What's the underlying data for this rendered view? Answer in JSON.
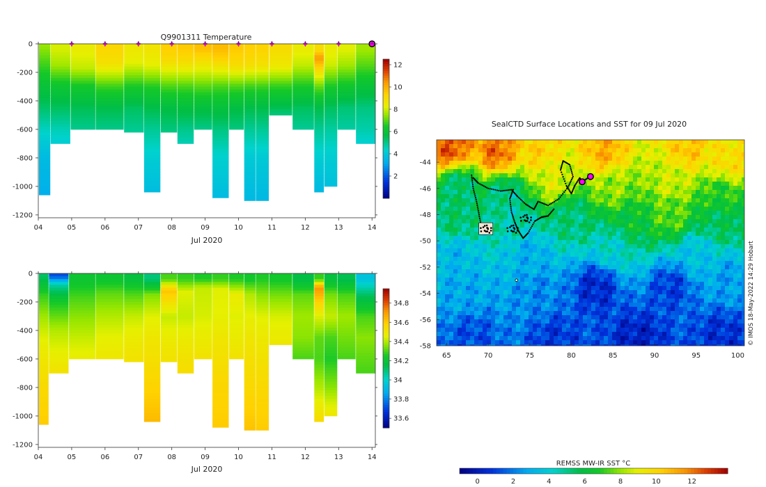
{
  "float_id": "Q9901311",
  "chart_data": [
    {
      "type": "heatmap",
      "title": "Q9901311  Temperature",
      "xlabel": "Jul 2020",
      "ylabel": "",
      "x_tick_labels": [
        "04",
        "05",
        "06",
        "07",
        "08",
        "09",
        "10",
        "11",
        "12",
        "13",
        "14"
      ],
      "xlim": [
        4,
        14.1
      ],
      "y_ticks": [
        0,
        -200,
        -400,
        -600,
        -800,
        -1000,
        -1200
      ],
      "ylim": [
        -1220,
        0
      ],
      "colorbar": {
        "range": [
          0,
          12.5
        ],
        "ticks": [
          2,
          4,
          6,
          8,
          10,
          12
        ]
      },
      "surface_markers_day": [
        5,
        6,
        7,
        8,
        9,
        10,
        11,
        12,
        13
      ],
      "current_marker_day": 14,
      "profiles": [
        {
          "day": 4.1,
          "z": [
            -20,
            -150,
            -300,
            -450,
            -600,
            -780,
            -1060
          ],
          "v": [
            7.5,
            6.8,
            6.0,
            5.3,
            4.5,
            3.7,
            3.3
          ]
        },
        {
          "day": 4.6,
          "z": [
            -40,
            -150,
            -300,
            -450,
            -600,
            -700
          ],
          "v": [
            8.1,
            7.6,
            6.2,
            5.4,
            4.6,
            4.2
          ]
        },
        {
          "day": 5.3,
          "z": [
            -40,
            -170,
            -300,
            -450,
            -590
          ],
          "v": [
            8.4,
            7.9,
            6.4,
            5.5,
            5.0
          ]
        },
        {
          "day": 6.1,
          "z": [
            -40,
            -140,
            -300,
            -450,
            -600
          ],
          "v": [
            9.2,
            8.8,
            6.8,
            5.6,
            5.0
          ]
        },
        {
          "day": 7.0,
          "z": [
            -40,
            -140,
            -300,
            -450,
            -610
          ],
          "v": [
            8.6,
            8.2,
            6.5,
            5.4,
            4.9
          ]
        },
        {
          "day": 7.3,
          "z": [
            -40,
            -150,
            -300,
            -450,
            -600,
            -800,
            -1040
          ],
          "v": [
            8.7,
            8.3,
            6.6,
            5.6,
            4.9,
            4.2,
            3.7
          ]
        },
        {
          "day": 8.0,
          "z": [
            -40,
            -120,
            -300,
            -450,
            -610
          ],
          "v": [
            9.4,
            9.0,
            6.9,
            5.7,
            5.1
          ]
        },
        {
          "day": 8.3,
          "z": [
            -40,
            -130,
            -300,
            -450,
            -600,
            -700
          ],
          "v": [
            9.5,
            8.9,
            6.9,
            5.8,
            5.0,
            4.6
          ]
        },
        {
          "day": 9.0,
          "z": [
            -40,
            -100,
            -300,
            -450,
            -600
          ],
          "v": [
            9.7,
            9.1,
            7.0,
            5.8,
            5.0
          ]
        },
        {
          "day": 9.4,
          "z": [
            -40,
            -110,
            -300,
            -450,
            -600,
            -800,
            -1070
          ],
          "v": [
            9.8,
            9.3,
            6.9,
            5.9,
            5.1,
            4.3,
            3.7
          ]
        },
        {
          "day": 10.0,
          "z": [
            -40,
            -150,
            -300,
            -450,
            -600
          ],
          "v": [
            9.5,
            9.0,
            6.9,
            5.7,
            5.1
          ]
        },
        {
          "day": 10.3,
          "z": [
            -40,
            -150,
            -300,
            -450,
            -600,
            -800,
            -1100
          ],
          "v": [
            9.4,
            8.9,
            6.8,
            5.6,
            4.9,
            4.1,
            3.6
          ]
        },
        {
          "day": 10.7,
          "z": [
            -40,
            -150,
            -300,
            -450,
            -600,
            -800,
            -1090
          ],
          "v": [
            9.3,
            8.8,
            6.8,
            5.6,
            4.9,
            4.1,
            3.6
          ]
        },
        {
          "day": 11.1,
          "z": [
            -40,
            -150,
            -300,
            -450,
            -500
          ],
          "v": [
            9.0,
            8.6,
            6.7,
            5.5,
            5.1
          ]
        },
        {
          "day": 12.1,
          "z": [
            -40,
            -150,
            -300,
            -450,
            -600
          ],
          "v": [
            8.4,
            7.9,
            6.5,
            5.4,
            4.9
          ]
        },
        {
          "day": 12.4,
          "z": [
            -40,
            -100,
            -300,
            -450,
            -600,
            -800,
            -1040
          ],
          "v": [
            9.0,
            10.4,
            7.1,
            5.6,
            4.9,
            4.2,
            3.6
          ]
        },
        {
          "day": 12.7,
          "z": [
            -40,
            -150,
            -300,
            -450,
            -600,
            -800,
            -1000
          ],
          "v": [
            8.4,
            8.0,
            6.5,
            5.4,
            4.8,
            4.2,
            3.8
          ]
        },
        {
          "day": 13.2,
          "z": [
            -40,
            -150,
            -300,
            -450,
            -590
          ],
          "v": [
            8.2,
            7.6,
            6.3,
            5.2,
            4.8
          ]
        },
        {
          "day": 13.8,
          "z": [
            -40,
            -150,
            -300,
            -450,
            -600,
            -700
          ],
          "v": [
            7.6,
            7.0,
            6.0,
            5.1,
            4.7,
            4.3
          ]
        }
      ]
    },
    {
      "type": "heatmap",
      "title": "",
      "xlabel": "Jul 2020",
      "ylabel": "",
      "x_tick_labels": [
        "04",
        "05",
        "06",
        "07",
        "08",
        "09",
        "10",
        "11",
        "12",
        "13",
        "14"
      ],
      "xlim": [
        4,
        14.1
      ],
      "y_ticks": [
        0,
        -200,
        -400,
        -600,
        -800,
        -1000,
        -1200
      ],
      "ylim": [
        -1220,
        0
      ],
      "colorbar": {
        "range": [
          33.5,
          34.95
        ],
        "ticks": [
          33.6,
          33.8,
          34,
          34.2,
          34.4,
          34.6,
          34.8
        ],
        "tick_labels": [
          "33.6",
          "33.8",
          "34",
          "34.2",
          "34.4",
          "34.6",
          "34.8"
        ]
      },
      "profiles": [
        {
          "day": 4.1,
          "z": [
            -20,
            -150,
            -300,
            -450,
            -600,
            -780,
            -1060
          ],
          "v": [
            34.12,
            34.28,
            34.38,
            34.45,
            34.5,
            34.55,
            34.6
          ]
        },
        {
          "day": 4.5,
          "z": [
            -20,
            -80,
            -200,
            -400,
            -600,
            -700
          ],
          "v": [
            33.72,
            34.05,
            34.25,
            34.4,
            34.48,
            34.52
          ]
        },
        {
          "day": 5.3,
          "z": [
            -40,
            -170,
            -300,
            -450,
            -590
          ],
          "v": [
            34.22,
            34.3,
            34.36,
            34.42,
            34.47
          ]
        },
        {
          "day": 6.1,
          "z": [
            -40,
            -140,
            -300,
            -450,
            -600
          ],
          "v": [
            34.22,
            34.32,
            34.4,
            34.46,
            34.5
          ]
        },
        {
          "day": 7.0,
          "z": [
            -40,
            -140,
            -300,
            -450,
            -610
          ],
          "v": [
            34.18,
            34.3,
            34.42,
            34.48,
            34.52
          ]
        },
        {
          "day": 7.3,
          "z": [
            -40,
            -150,
            -300,
            -450,
            -600,
            -800,
            -1040
          ],
          "v": [
            34.1,
            34.35,
            34.45,
            34.5,
            34.53,
            34.58,
            34.64
          ]
        },
        {
          "day": 8.0,
          "z": [
            -40,
            -120,
            -300,
            -450,
            -610
          ],
          "v": [
            34.3,
            34.62,
            34.42,
            34.48,
            34.52
          ]
        },
        {
          "day": 8.3,
          "z": [
            -40,
            -130,
            -300,
            -450,
            -600,
            -700
          ],
          "v": [
            34.28,
            34.45,
            34.42,
            34.48,
            34.52,
            34.54
          ]
        },
        {
          "day": 9.0,
          "z": [
            -40,
            -100,
            -300,
            -450,
            -600
          ],
          "v": [
            34.26,
            34.42,
            34.44,
            34.48,
            34.52
          ]
        },
        {
          "day": 9.4,
          "z": [
            -40,
            -110,
            -300,
            -450,
            -600,
            -800,
            -1070
          ],
          "v": [
            34.28,
            34.45,
            34.46,
            34.5,
            34.53,
            34.57,
            34.6
          ]
        },
        {
          "day": 10.0,
          "z": [
            -40,
            -150,
            -300,
            -450,
            -600
          ],
          "v": [
            34.26,
            34.48,
            34.45,
            34.48,
            34.52
          ]
        },
        {
          "day": 10.3,
          "z": [
            -40,
            -150,
            -300,
            -450,
            -600,
            -800,
            -1100
          ],
          "v": [
            34.24,
            34.4,
            34.46,
            34.5,
            34.53,
            34.56,
            34.62
          ]
        },
        {
          "day": 10.7,
          "z": [
            -40,
            -150,
            -300,
            -450,
            -600,
            -800,
            -1090
          ],
          "v": [
            34.26,
            34.36,
            34.45,
            34.49,
            34.52,
            34.56,
            34.6
          ]
        },
        {
          "day": 11.1,
          "z": [
            -40,
            -150,
            -300,
            -450,
            -500
          ],
          "v": [
            34.24,
            34.34,
            34.44,
            34.48,
            34.5
          ]
        },
        {
          "day": 12.1,
          "z": [
            -40,
            -150,
            -300,
            -450,
            -600
          ],
          "v": [
            34.16,
            34.32,
            34.38,
            34.36,
            34.3
          ]
        },
        {
          "day": 12.4,
          "z": [
            -40,
            -100,
            -300,
            -450,
            -600,
            -800,
            -1040
          ],
          "v": [
            34.28,
            34.72,
            34.45,
            34.32,
            34.3,
            34.4,
            34.55
          ]
        },
        {
          "day": 12.7,
          "z": [
            -40,
            -150,
            -300,
            -450,
            -600,
            -800,
            -1000
          ],
          "v": [
            34.18,
            34.34,
            34.42,
            34.3,
            34.26,
            34.36,
            34.5
          ]
        },
        {
          "day": 13.2,
          "z": [
            -40,
            -150,
            -300,
            -450,
            -590
          ],
          "v": [
            34.14,
            34.3,
            34.38,
            34.34,
            34.3
          ]
        },
        {
          "day": 13.8,
          "z": [
            -40,
            -150,
            -300,
            -450,
            -600,
            -700
          ],
          "v": [
            33.95,
            34.12,
            34.3,
            34.36,
            34.32,
            34.3
          ]
        }
      ]
    },
    {
      "type": "heatmap",
      "title": "SealCTD Surface Locations and SST for 09 Jul 2020",
      "xlabel": "",
      "ylabel": "",
      "x_ticks": [
        65,
        70,
        75,
        80,
        85,
        90,
        95,
        100
      ],
      "y_ticks": [
        -44,
        -46,
        -48,
        -50,
        -52,
        -54,
        -56,
        -58
      ],
      "xlim": [
        63.8,
        100.8
      ],
      "ylim": [
        -58,
        -42.3
      ],
      "colorbar": {
        "label": "REMSS MW-IR SST °C",
        "range": [
          -1,
          14
        ],
        "ticks": [
          0,
          2,
          4,
          6,
          8,
          10,
          12
        ]
      },
      "sst_field_anchors": [
        {
          "lon": 65.5,
          "lat": -43.0,
          "t": 12.5
        },
        {
          "lon": 71.0,
          "lat": -43.3,
          "t": 12.2
        },
        {
          "lon": 76.0,
          "lat": -43.0,
          "t": 10.2
        },
        {
          "lon": 84.0,
          "lat": -43.2,
          "t": 11.0
        },
        {
          "lon": 94.0,
          "lat": -43.0,
          "t": 10.5
        },
        {
          "lon": 99.0,
          "lat": -44.0,
          "t": 9.8
        },
        {
          "lon": 66.5,
          "lat": -45.8,
          "t": 5.2
        },
        {
          "lon": 72.0,
          "lat": -46.5,
          "t": 5.0
        },
        {
          "lon": 78.0,
          "lat": -45.5,
          "t": 8.8
        },
        {
          "lon": 85.0,
          "lat": -46.0,
          "t": 8.0
        },
        {
          "lon": 92.0,
          "lat": -45.5,
          "t": 8.6
        },
        {
          "lon": 98.0,
          "lat": -46.5,
          "t": 6.8
        },
        {
          "lon": 66.0,
          "lat": -48.5,
          "t": 5.4
        },
        {
          "lon": 73.0,
          "lat": -48.5,
          "t": 4.6
        },
        {
          "lon": 80.0,
          "lat": -48.2,
          "t": 5.2
        },
        {
          "lon": 87.0,
          "lat": -48.5,
          "t": 6.2
        },
        {
          "lon": 92.0,
          "lat": -48.0,
          "t": 7.4
        },
        {
          "lon": 98.0,
          "lat": -48.5,
          "t": 5.6
        },
        {
          "lon": 66.0,
          "lat": -51.0,
          "t": 3.2
        },
        {
          "lon": 75.0,
          "lat": -51.0,
          "t": 3.0
        },
        {
          "lon": 85.0,
          "lat": -50.5,
          "t": 4.2
        },
        {
          "lon": 95.0,
          "lat": -51.0,
          "t": 3.5
        },
        {
          "lon": 67.0,
          "lat": -54.0,
          "t": 2.8
        },
        {
          "lon": 76.0,
          "lat": -54.0,
          "t": 2.2
        },
        {
          "lon": 83.0,
          "lat": -53.5,
          "t": 0.4
        },
        {
          "lon": 92.0,
          "lat": -53.5,
          "t": 0.9
        },
        {
          "lon": 99.0,
          "lat": -53.0,
          "t": 2.6
        },
        {
          "lon": 68.0,
          "lat": -57.2,
          "t": 1.2
        },
        {
          "lon": 78.0,
          "lat": -57.5,
          "t": 0.8
        },
        {
          "lon": 88.0,
          "lat": -57.5,
          "t": 0.2
        },
        {
          "lon": 98.0,
          "lat": -57.2,
          "t": 0.6
        }
      ],
      "track": [
        [
          68.2,
          -45.2
        ],
        [
          68.8,
          -45.6
        ],
        [
          70.0,
          -46.0
        ],
        [
          71.5,
          -46.2
        ],
        [
          72.8,
          -46.1
        ],
        [
          73.5,
          -46.6
        ],
        [
          74.5,
          -47.2
        ],
        [
          75.5,
          -47.6
        ],
        [
          76.0,
          -47.0
        ],
        [
          77.2,
          -47.3
        ],
        [
          78.5,
          -46.8
        ],
        [
          79.6,
          -45.9
        ],
        [
          80.2,
          -45.1
        ],
        [
          79.8,
          -44.2
        ],
        [
          79.0,
          -43.9
        ],
        [
          78.7,
          -44.6
        ],
        [
          79.4,
          -45.8
        ],
        [
          80.0,
          -46.4
        ],
        [
          80.4,
          -45.8
        ],
        [
          81.0,
          -45.2
        ],
        [
          81.3,
          -45.5
        ],
        [
          82.0,
          -45.2
        ],
        [
          82.6,
          -45.0
        ]
      ],
      "track_branch": [
        [
          73.0,
          -46.1
        ],
        [
          72.6,
          -46.8
        ],
        [
          72.8,
          -47.8
        ],
        [
          73.2,
          -48.6
        ],
        [
          73.6,
          -49.2
        ],
        [
          74.2,
          -49.8
        ],
        [
          74.8,
          -49.4
        ],
        [
          75.6,
          -48.5
        ],
        [
          76.4,
          -48.2
        ],
        [
          77.2,
          -48.1
        ],
        [
          78.0,
          -47.5
        ]
      ],
      "track_west": [
        [
          68.0,
          -45.0
        ],
        [
          68.2,
          -46.0
        ],
        [
          68.6,
          -47.0
        ],
        [
          68.9,
          -48.0
        ],
        [
          69.2,
          -49.0
        ]
      ],
      "clusters": [
        [
          74.6,
          -48.3
        ],
        [
          73.0,
          -49.1
        ],
        [
          69.8,
          -49.1
        ]
      ],
      "current_position": [
        81.3,
        -45.5
      ],
      "current_position_2": [
        82.3,
        -45.1
      ]
    }
  ],
  "watermark": "© IMOS 18-May-2022 14:29 Hobart"
}
